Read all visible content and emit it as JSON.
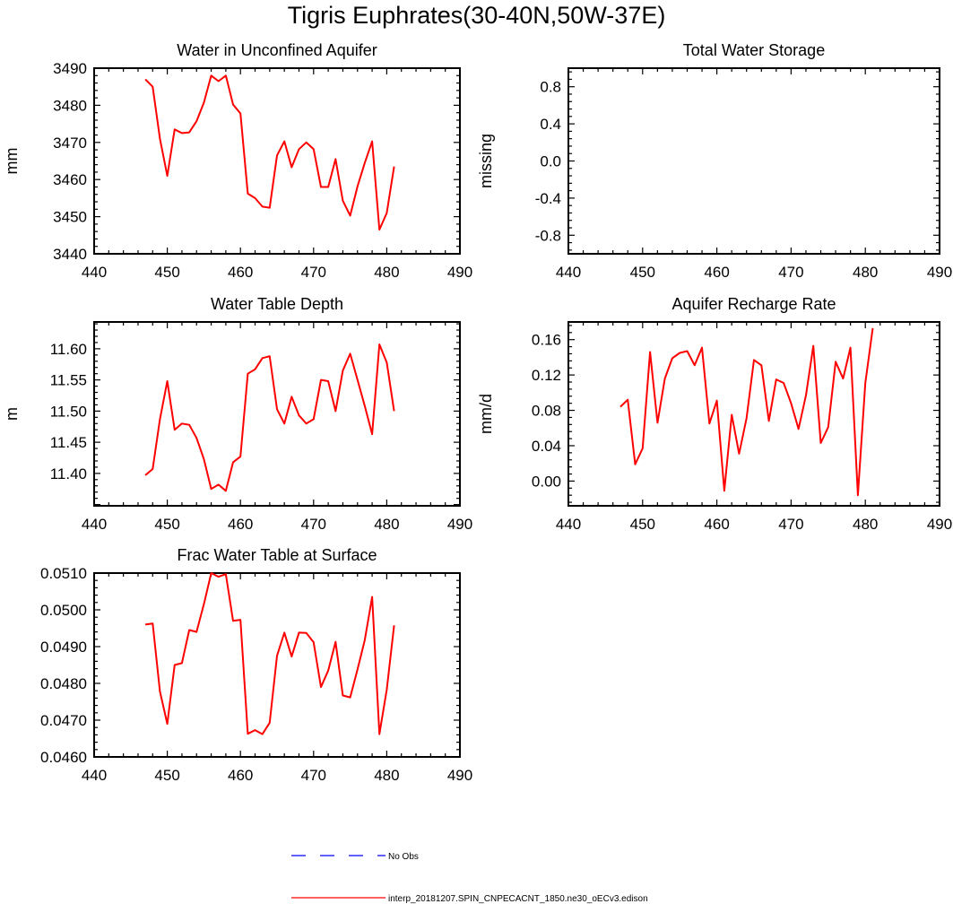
{
  "title": "Tigris Euphrates(30-40N,50W-37E)",
  "chart_data": [
    {
      "type": "line",
      "title": "Water in Unconfined Aquifer",
      "xlabel": "",
      "ylabel": "mm",
      "xlim": [
        440,
        490
      ],
      "ylim": [
        3440,
        3490
      ],
      "xticks": [
        440,
        450,
        460,
        470,
        480,
        490
      ],
      "yticks": [
        3440,
        3450,
        3460,
        3470,
        3480,
        3490
      ],
      "ytick_labels": [
        "3440",
        "3450",
        "3460",
        "3470",
        "3480",
        "3490"
      ],
      "series": [
        {
          "name": "interp_20181207.SPIN_CNPECACNT_1850.ne30_oECv3.edison",
          "color": "#ff0000",
          "x": [
            447,
            448,
            449,
            450,
            451,
            452,
            453,
            454,
            455,
            456,
            457,
            458,
            459,
            460,
            461,
            462,
            463,
            464,
            465,
            466,
            467,
            468,
            469,
            470,
            471,
            472,
            473,
            474,
            475,
            476,
            477,
            478,
            479,
            480,
            481
          ],
          "y": [
            3487,
            3485,
            3471,
            3461,
            3473.5,
            3472.5,
            3472.7,
            3475.7,
            3480.7,
            3488,
            3486.5,
            3488,
            3480.2,
            3477.8,
            3456.2,
            3455,
            3452.7,
            3452.4,
            3466.5,
            3470.3,
            3463.3,
            3468.2,
            3470,
            3468.2,
            3458,
            3458,
            3465.5,
            3454.3,
            3450.3,
            3458.2,
            3464.5,
            3470.3,
            3446.5,
            3451,
            3463.5
          ]
        }
      ]
    },
    {
      "type": "line",
      "title": "Total Water Storage",
      "xlabel": "",
      "ylabel": "missing",
      "xlim": [
        440,
        490
      ],
      "ylim": [
        -1,
        1
      ],
      "xticks": [
        440,
        450,
        460,
        470,
        480,
        490
      ],
      "yticks": [
        -0.8,
        -0.4,
        0.0,
        0.4,
        0.8
      ],
      "ytick_labels": [
        "-0.8",
        "-0.4",
        "0.0",
        "0.4",
        "0.8"
      ],
      "series": []
    },
    {
      "type": "line",
      "title": "Water Table Depth",
      "xlabel": "",
      "ylabel": "m",
      "xlim": [
        440,
        490
      ],
      "ylim": [
        11.348,
        11.643
      ],
      "xticks": [
        440,
        450,
        460,
        470,
        480,
        490
      ],
      "yticks": [
        11.4,
        11.45,
        11.5,
        11.55,
        11.6
      ],
      "ytick_labels": [
        "11.40",
        "11.45",
        "11.50",
        "11.55",
        "11.60"
      ],
      "series": [
        {
          "name": "interp_20181207.SPIN_CNPECACNT_1850.ne30_oECv3.edison",
          "color": "#ff0000",
          "x": [
            447,
            448,
            449,
            450,
            451,
            452,
            453,
            454,
            455,
            456,
            457,
            458,
            459,
            460,
            461,
            462,
            463,
            464,
            465,
            466,
            467,
            468,
            469,
            470,
            471,
            472,
            473,
            474,
            475,
            476,
            477,
            478,
            479,
            480,
            481
          ],
          "y": [
            11.397,
            11.407,
            11.487,
            11.548,
            11.47,
            11.48,
            11.478,
            11.457,
            11.423,
            11.375,
            11.382,
            11.372,
            11.418,
            11.427,
            11.56,
            11.567,
            11.585,
            11.588,
            11.503,
            11.48,
            11.523,
            11.493,
            11.48,
            11.487,
            11.55,
            11.548,
            11.5,
            11.565,
            11.592,
            11.55,
            11.508,
            11.463,
            11.607,
            11.578,
            11.5
          ]
        }
      ]
    },
    {
      "type": "line",
      "title": "Aquifer Recharge Rate",
      "xlabel": "",
      "ylabel": "mm/d",
      "xlim": [
        440,
        490
      ],
      "ylim": [
        -0.028,
        0.18
      ],
      "xticks": [
        440,
        450,
        460,
        470,
        480,
        490
      ],
      "yticks": [
        0.0,
        0.04,
        0.08,
        0.12,
        0.16
      ],
      "ytick_labels": [
        "0.00",
        "0.04",
        "0.08",
        "0.12",
        "0.16"
      ],
      "series": [
        {
          "name": "interp_20181207.SPIN_CNPECACNT_1850.ne30_oECv3.edison",
          "color": "#ff0000",
          "x": [
            447,
            448,
            449,
            450,
            451,
            452,
            453,
            454,
            455,
            456,
            457,
            458,
            459,
            460,
            461,
            462,
            463,
            464,
            465,
            466,
            467,
            468,
            469,
            470,
            471,
            472,
            473,
            474,
            475,
            476,
            477,
            478,
            479,
            480,
            481
          ],
          "y": [
            0.084,
            0.092,
            0.019,
            0.037,
            0.146,
            0.066,
            0.116,
            0.139,
            0.145,
            0.147,
            0.131,
            0.151,
            0.065,
            0.091,
            -0.011,
            0.075,
            0.031,
            0.071,
            0.137,
            0.131,
            0.068,
            0.115,
            0.111,
            0.088,
            0.059,
            0.097,
            0.153,
            0.043,
            0.061,
            0.135,
            0.116,
            0.151,
            -0.016,
            0.111,
            0.173
          ]
        }
      ]
    },
    {
      "type": "line",
      "title": "Frac Water Table at Surface",
      "xlabel": "",
      "ylabel": "",
      "xlim": [
        440,
        490
      ],
      "ylim": [
        0.046,
        0.051
      ],
      "xticks": [
        440,
        450,
        460,
        470,
        480,
        490
      ],
      "yticks": [
        0.046,
        0.047,
        0.048,
        0.049,
        0.05,
        0.051
      ],
      "ytick_labels": [
        "0.0460",
        "0.0470",
        "0.0480",
        "0.0490",
        "0.0500",
        "0.0510"
      ],
      "series": [
        {
          "name": "interp_20181207.SPIN_CNPECACNT_1850.ne30_oECv3.edison",
          "color": "#ff0000",
          "x": [
            447,
            448,
            449,
            450,
            451,
            452,
            453,
            454,
            455,
            456,
            457,
            458,
            459,
            460,
            461,
            462,
            463,
            464,
            465,
            466,
            467,
            468,
            469,
            470,
            471,
            472,
            473,
            474,
            475,
            476,
            477,
            478,
            479,
            480,
            481
          ],
          "y": [
            0.0496,
            0.04963,
            0.04778,
            0.0469,
            0.0485,
            0.04855,
            0.04945,
            0.0494,
            0.05015,
            0.051,
            0.0509,
            0.05097,
            0.0497,
            0.04973,
            0.04663,
            0.04673,
            0.04662,
            0.04693,
            0.04875,
            0.04938,
            0.04873,
            0.04938,
            0.04937,
            0.04912,
            0.0479,
            0.04835,
            0.04913,
            0.04767,
            0.04762,
            0.04838,
            0.04918,
            0.05035,
            0.04662,
            0.04783,
            0.04958
          ]
        }
      ]
    }
  ],
  "legend": {
    "items": [
      {
        "label": "No Obs",
        "color": "#0000ff",
        "dash": "dashed"
      },
      {
        "label": "interp_20181207.SPIN_CNPECACNT_1850.ne30_oECv3.edison",
        "color": "#ff0000",
        "dash": "solid"
      }
    ]
  }
}
